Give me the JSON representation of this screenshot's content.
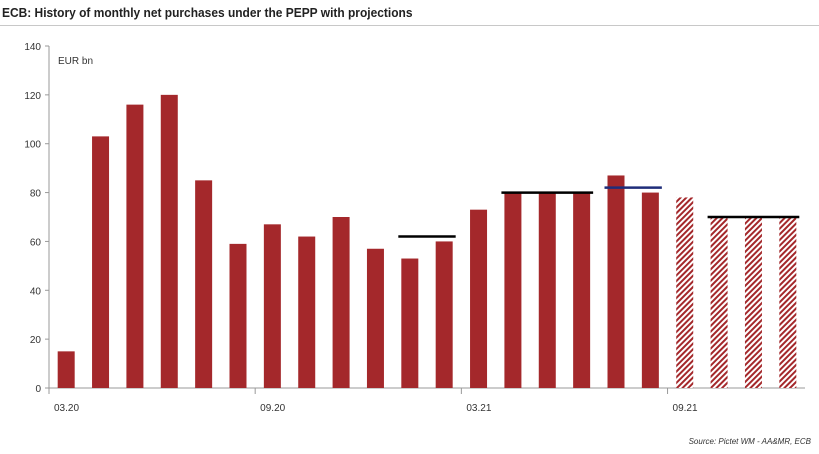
{
  "title": "ECB: History of monthly net purchases under the PEPP with projections",
  "source": "Source: Pictet WM - AA&MR, ECB",
  "chart_data": {
    "type": "bar",
    "ylabel": "EUR bn",
    "ylim": [
      0,
      140
    ],
    "yticks": [
      0,
      20,
      40,
      60,
      80,
      100,
      120,
      140
    ],
    "xtick_labels": [
      {
        "index": 0,
        "label": "03.20"
      },
      {
        "index": 6,
        "label": "09.20"
      },
      {
        "index": 12,
        "label": "03.21"
      },
      {
        "index": 18,
        "label": "09.21"
      }
    ],
    "categories": [
      "03.20",
      "04.20",
      "05.20",
      "06.20",
      "07.20",
      "08.20",
      "09.20",
      "10.20",
      "11.20",
      "12.20",
      "01.21",
      "02.21",
      "03.21",
      "04.21",
      "05.21",
      "06.21",
      "07.21",
      "08.21",
      "09.21",
      "10.21",
      "11.21",
      "12.21"
    ],
    "series": [
      {
        "values": [
          15,
          103,
          116,
          120,
          85,
          59,
          67,
          62,
          70,
          57,
          53,
          60,
          73,
          80,
          80,
          80,
          87,
          80,
          null,
          null,
          null,
          null
        ]
      },
      {
        "projection": true,
        "values": [
          null,
          null,
          null,
          null,
          null,
          null,
          null,
          null,
          null,
          null,
          null,
          null,
          null,
          null,
          null,
          null,
          null,
          null,
          78,
          70,
          70,
          70
        ]
      }
    ],
    "reference_lines": [
      {
        "value": 62,
        "from_index": 10,
        "to_index": 11,
        "color": "#000000"
      },
      {
        "value": 80,
        "from_index": 13,
        "to_index": 15,
        "color": "#000000"
      },
      {
        "value": 82,
        "from_index": 16,
        "to_index": 17,
        "color": "#1f2d7a"
      },
      {
        "value": 70,
        "from_index": 19,
        "to_index": 21,
        "color": "#000000"
      }
    ],
    "colors": {
      "bar": "#a4282b",
      "projection": "#a4282b",
      "axis": "#999999"
    }
  }
}
